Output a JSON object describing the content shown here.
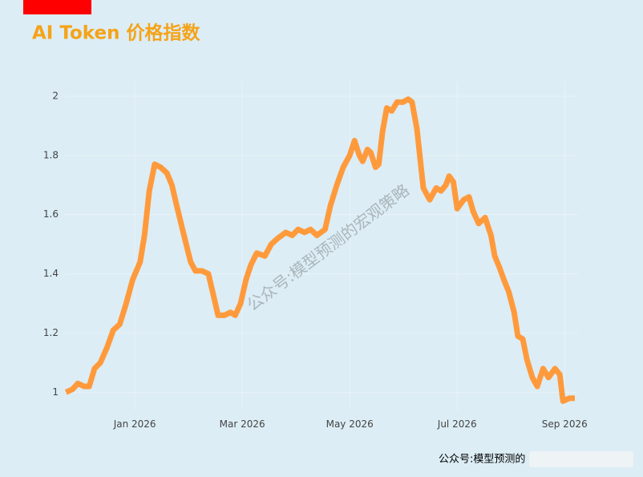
{
  "chart_data": {
    "type": "line",
    "title": "AI Token 价格指数",
    "watermark": "公众号:模型预测的宏观策略",
    "footer": "公众号:模型预测的",
    "color": "#ff9a3c",
    "x": [
      -1.28,
      -1.16,
      -1.06,
      -0.94,
      -0.85,
      -0.75,
      -0.64,
      -0.52,
      -0.4,
      -0.28,
      -0.16,
      -0.04,
      0.1,
      0.18,
      0.27,
      0.37,
      0.48,
      0.6,
      0.69,
      0.78,
      0.93,
      1.04,
      1.13,
      1.25,
      1.37,
      1.46,
      1.55,
      1.67,
      1.78,
      1.87,
      1.97,
      2.07,
      2.16,
      2.27,
      2.42,
      2.54,
      2.66,
      2.81,
      2.93,
      3.04,
      3.16,
      3.27,
      3.39,
      3.54,
      3.64,
      3.76,
      3.88,
      4.0,
      4.09,
      4.18,
      4.24,
      4.33,
      4.39,
      4.48,
      4.54,
      4.61,
      4.69,
      4.78,
      4.88,
      4.99,
      5.09,
      5.16,
      5.25,
      5.37,
      5.49,
      5.61,
      5.7,
      5.79,
      5.85,
      5.93,
      6.0,
      6.12,
      6.22,
      6.3,
      6.4,
      6.52,
      6.63,
      6.7,
      6.79,
      6.87,
      6.96,
      7.06,
      7.13,
      7.22,
      7.3,
      7.4,
      7.49,
      7.6,
      7.7,
      7.82,
      7.91,
      7.97,
      8.09,
      8.19
    ],
    "values": [
      1.0,
      1.01,
      1.03,
      1.02,
      1.02,
      1.08,
      1.1,
      1.15,
      1.21,
      1.23,
      1.3,
      1.38,
      1.44,
      1.53,
      1.68,
      1.77,
      1.76,
      1.74,
      1.7,
      1.63,
      1.52,
      1.44,
      1.41,
      1.41,
      1.4,
      1.33,
      1.26,
      1.26,
      1.27,
      1.26,
      1.3,
      1.38,
      1.43,
      1.47,
      1.46,
      1.5,
      1.52,
      1.54,
      1.53,
      1.55,
      1.54,
      1.55,
      1.53,
      1.55,
      1.63,
      1.7,
      1.76,
      1.8,
      1.85,
      1.8,
      1.78,
      1.82,
      1.81,
      1.76,
      1.77,
      1.88,
      1.96,
      1.95,
      1.98,
      1.98,
      1.99,
      1.98,
      1.89,
      1.69,
      1.65,
      1.69,
      1.68,
      1.7,
      1.73,
      1.71,
      1.62,
      1.65,
      1.66,
      1.61,
      1.57,
      1.59,
      1.53,
      1.46,
      1.42,
      1.38,
      1.34,
      1.27,
      1.19,
      1.18,
      1.11,
      1.05,
      1.02,
      1.08,
      1.05,
      1.08,
      1.06,
      0.97,
      0.98,
      0.98
    ],
    "xlim": [
      -1.3,
      8.25
    ],
    "xticks": [
      {
        "value": 0,
        "label": "Jan 2026"
      },
      {
        "value": 2,
        "label": "Mar 2026"
      },
      {
        "value": 4,
        "label": "May 2026"
      },
      {
        "value": 6,
        "label": "Jul 2026"
      },
      {
        "value": 8,
        "label": "Sep 2026"
      }
    ],
    "ylim": [
      0.94,
      2.05
    ],
    "yticks": [
      1,
      1.2,
      1.4,
      1.6,
      1.8,
      2
    ],
    "grid": true
  }
}
